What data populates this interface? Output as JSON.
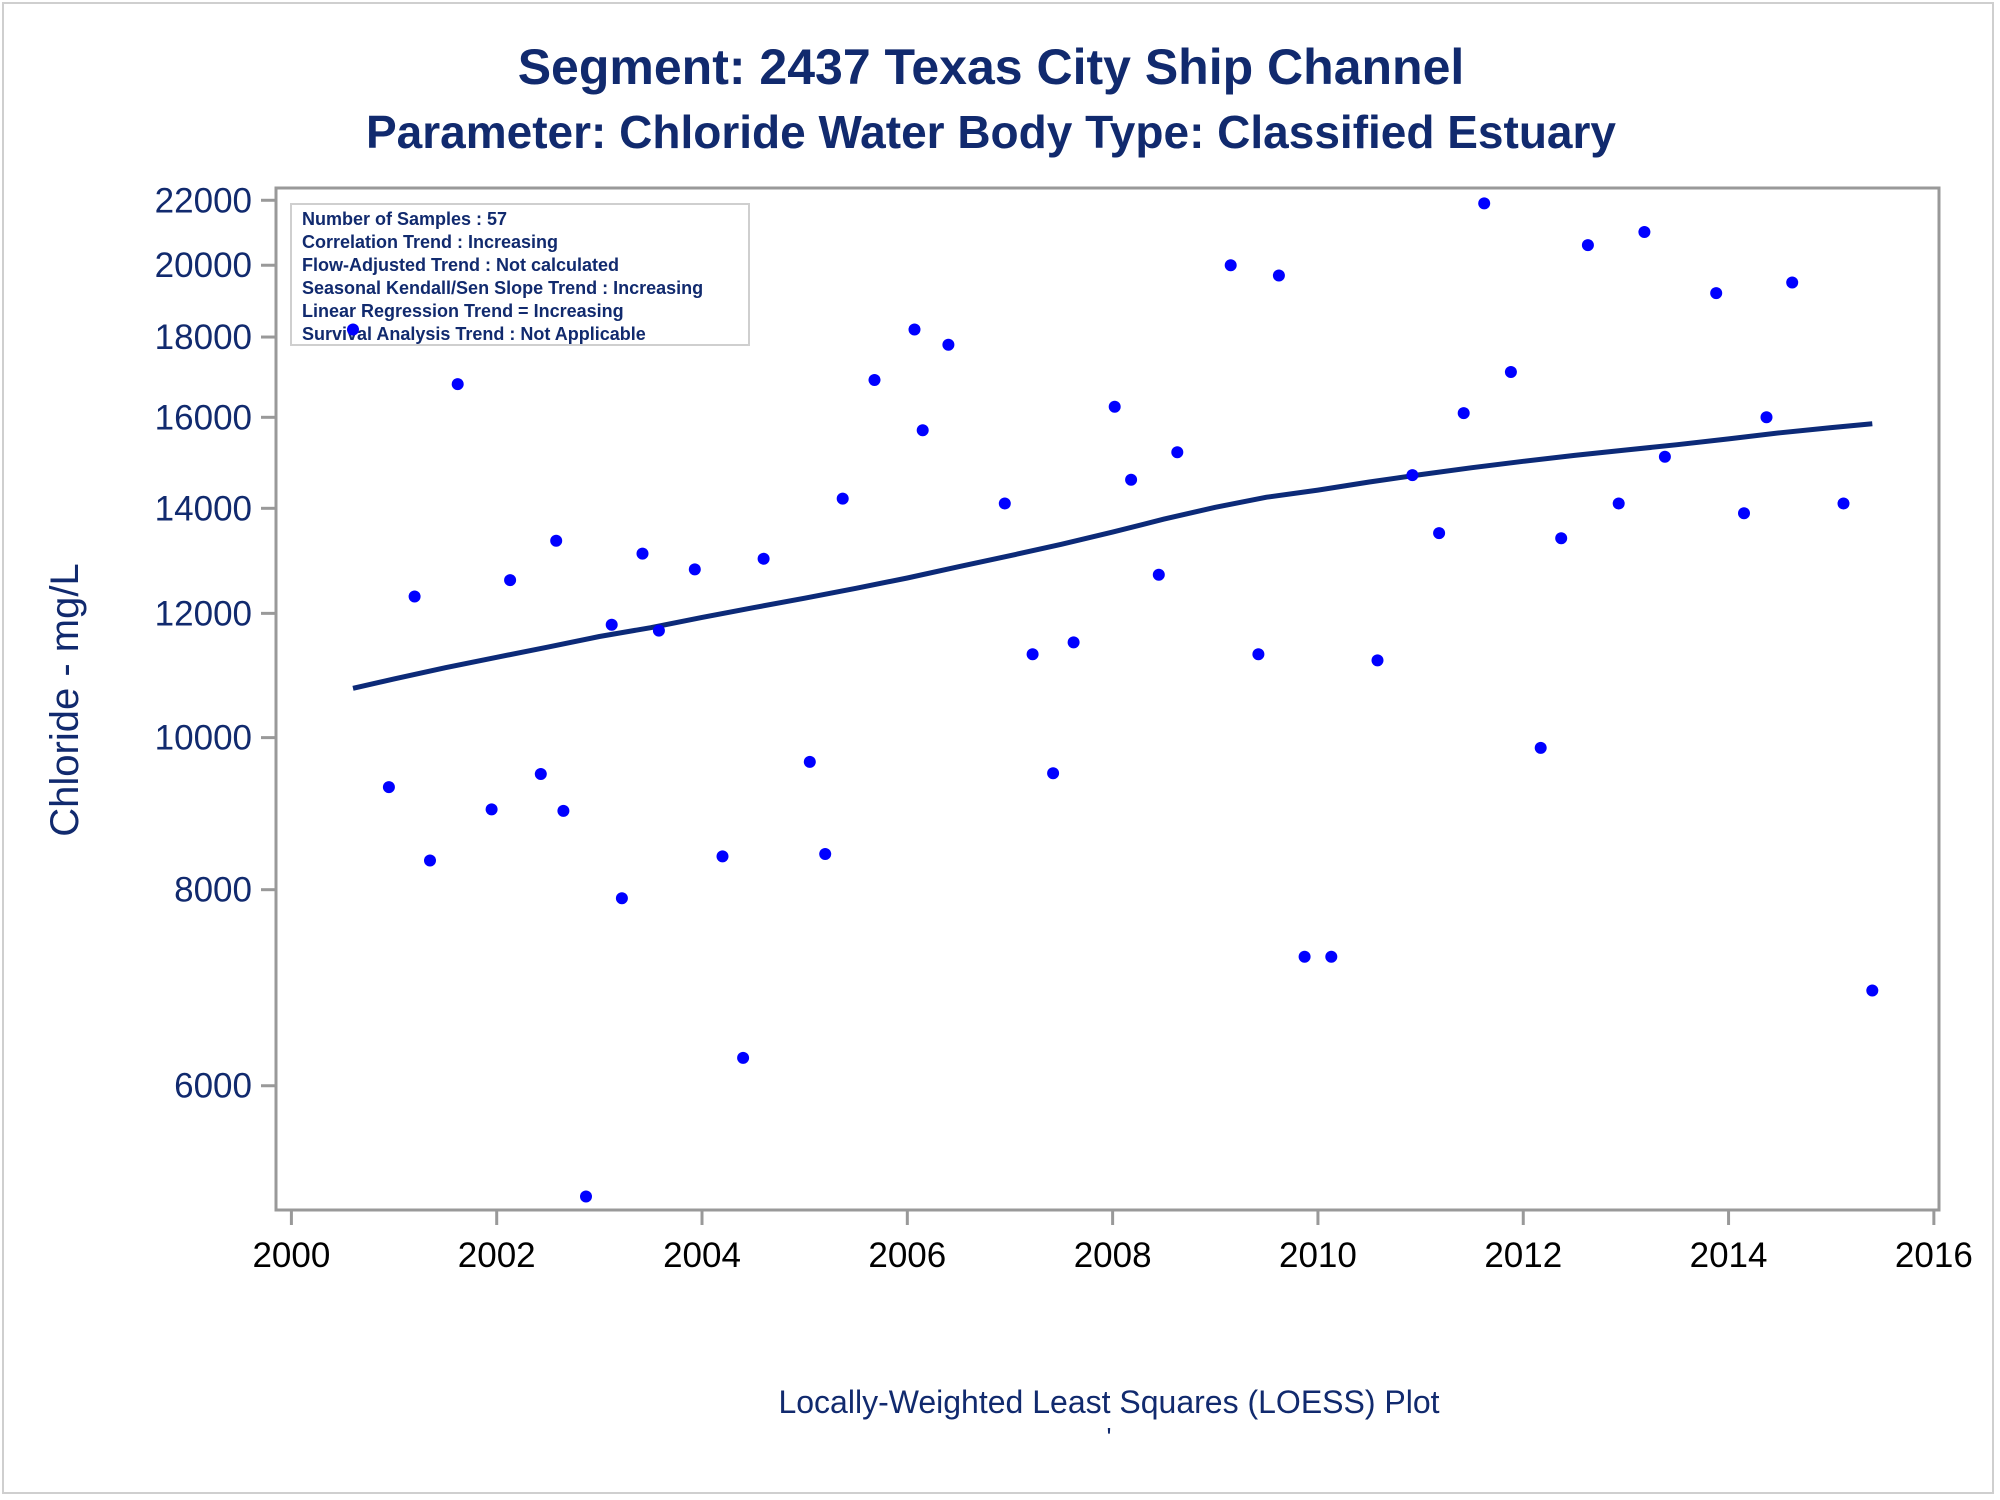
{
  "colors": {
    "title": "#112a6e",
    "axis_text": "#112a6e",
    "x_tick_text": "#000000",
    "points": "#0000ff",
    "trend_line": "#0c2a78",
    "frame": "#999999"
  },
  "chart_data": {
    "type": "scatter",
    "title": "Segment: 2437  Texas City Ship Channel",
    "subtitle": "Parameter: Chloride   Water Body Type: Classified Estuary",
    "xlabel": "Locally-Weighted Least Squares (LOESS) Plot",
    "ylabel": "Chloride - mg/L",
    "footer_mark": "'",
    "y_scale": "log",
    "xlim": [
      1999.85,
      2016.05
    ],
    "ylim": [
      5000,
      22400
    ],
    "x_ticks": [
      "2000",
      "2002",
      "2004",
      "2006",
      "2008",
      "2010",
      "2012",
      "2014",
      "2016"
    ],
    "y_ticks": [
      "6000",
      "8000",
      "10000",
      "12000",
      "14000",
      "16000",
      "18000",
      "20000",
      "22000"
    ],
    "grid": false,
    "legend": "none",
    "info_box": {
      "position": "top-left",
      "lines": [
        "Number of Samples : 57",
        "Correlation Trend : Increasing",
        "Flow-Adjusted Trend : Not calculated",
        "Seasonal Kendall/Sen Slope Trend : Increasing",
        "Linear Regression Trend = Increasing",
        "Survival Analysis Trend : Not Applicable"
      ]
    },
    "series": [
      {
        "type": "scatter",
        "points": [
          [
            2000.6,
            18200
          ],
          [
            2000.95,
            9300
          ],
          [
            2001.2,
            12300
          ],
          [
            2001.35,
            8350
          ],
          [
            2001.62,
            16800
          ],
          [
            2001.95,
            9000
          ],
          [
            2002.13,
            12600
          ],
          [
            2002.43,
            9480
          ],
          [
            2002.58,
            13350
          ],
          [
            2002.65,
            8980
          ],
          [
            2002.87,
            5100
          ],
          [
            2003.12,
            11800
          ],
          [
            2003.22,
            7900
          ],
          [
            2003.42,
            13100
          ],
          [
            2003.58,
            11700
          ],
          [
            2003.93,
            12800
          ],
          [
            2004.2,
            8400
          ],
          [
            2004.4,
            6250
          ],
          [
            2004.6,
            13000
          ],
          [
            2005.05,
            9650
          ],
          [
            2005.2,
            8430
          ],
          [
            2005.37,
            14200
          ],
          [
            2005.68,
            16900
          ],
          [
            2006.07,
            18200
          ],
          [
            2006.15,
            15700
          ],
          [
            2006.4,
            17800
          ],
          [
            2006.95,
            14100
          ],
          [
            2007.22,
            11300
          ],
          [
            2007.42,
            9490
          ],
          [
            2007.62,
            11500
          ],
          [
            2008.02,
            16250
          ],
          [
            2008.18,
            14600
          ],
          [
            2008.45,
            12700
          ],
          [
            2008.63,
            15200
          ],
          [
            2009.15,
            20000
          ],
          [
            2009.42,
            11300
          ],
          [
            2009.62,
            19700
          ],
          [
            2009.87,
            7250
          ],
          [
            2010.13,
            7250
          ],
          [
            2010.58,
            11200
          ],
          [
            2010.92,
            14700
          ],
          [
            2011.18,
            13500
          ],
          [
            2011.42,
            16100
          ],
          [
            2011.62,
            21900
          ],
          [
            2011.88,
            17100
          ],
          [
            2012.17,
            9850
          ],
          [
            2012.37,
            13400
          ],
          [
            2012.63,
            20600
          ],
          [
            2012.93,
            14100
          ],
          [
            2013.18,
            21000
          ],
          [
            2013.38,
            15100
          ],
          [
            2013.88,
            19200
          ],
          [
            2014.15,
            13900
          ],
          [
            2014.37,
            16000
          ],
          [
            2014.62,
            19500
          ],
          [
            2015.12,
            14100
          ],
          [
            2015.4,
            6900
          ]
        ]
      },
      {
        "type": "line",
        "points": [
          [
            2000.6,
            10750
          ],
          [
            2001.0,
            10900
          ],
          [
            2001.5,
            11080
          ],
          [
            2002.0,
            11250
          ],
          [
            2002.5,
            11420
          ],
          [
            2003.0,
            11600
          ],
          [
            2003.5,
            11750
          ],
          [
            2004.0,
            11930
          ],
          [
            2004.5,
            12100
          ],
          [
            2005.0,
            12270
          ],
          [
            2005.5,
            12450
          ],
          [
            2006.0,
            12640
          ],
          [
            2006.5,
            12850
          ],
          [
            2007.0,
            13060
          ],
          [
            2007.5,
            13280
          ],
          [
            2008.0,
            13520
          ],
          [
            2008.5,
            13780
          ],
          [
            2009.0,
            14020
          ],
          [
            2009.5,
            14230
          ],
          [
            2010.0,
            14380
          ],
          [
            2010.5,
            14550
          ],
          [
            2011.0,
            14710
          ],
          [
            2011.5,
            14860
          ],
          [
            2012.0,
            15000
          ],
          [
            2012.5,
            15130
          ],
          [
            2013.0,
            15250
          ],
          [
            2013.5,
            15370
          ],
          [
            2014.0,
            15500
          ],
          [
            2014.5,
            15640
          ],
          [
            2015.0,
            15760
          ],
          [
            2015.4,
            15850
          ]
        ]
      }
    ]
  }
}
